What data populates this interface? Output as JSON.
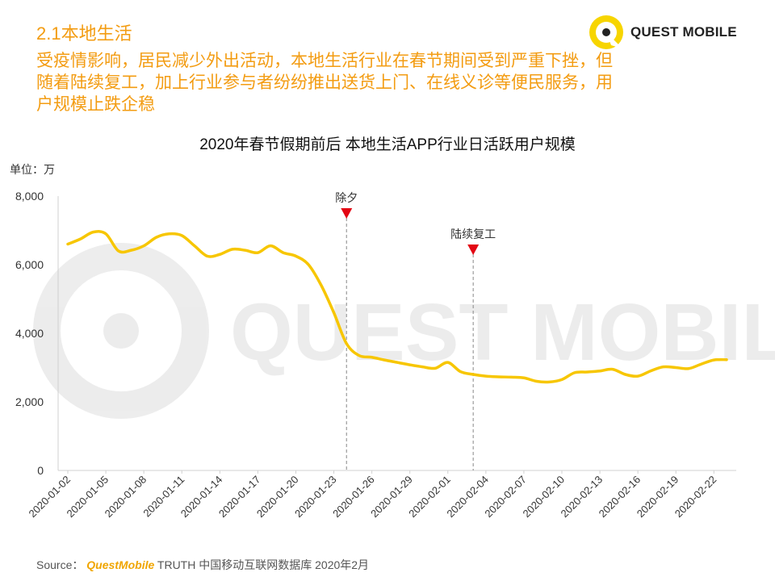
{
  "header": {
    "section_title": "2.1本地生活",
    "headline": "受疫情影响，居民减少外出活动，本地生活行业在春节期间受到严重下挫，但随着陆续复工，加上行业参与者纷纷推出送货上门、在线义诊等便民服务，用户规模止跌企稳",
    "logo_text": "QUEST MOBILE"
  },
  "watermark": "QUEST MOBILE",
  "colors": {
    "accent": "#f39c12",
    "line": "#f7c600",
    "marker": "#e30613",
    "logo_yellow": "#f7d500"
  },
  "chart_data": {
    "type": "line",
    "title": "2020年春节假期前后 本地生活APP行业日活跃用户规模",
    "unit_label": "单位：万",
    "ylim": [
      0,
      8000
    ],
    "y_ticks": [
      0,
      2000,
      4000,
      6000,
      8000
    ],
    "y_tick_labels": [
      "0",
      "2,000",
      "4,000",
      "6,000",
      "8,000"
    ],
    "x_tick_labels": [
      "2020-01-02",
      "2020-01-05",
      "2020-01-08",
      "2020-01-11",
      "2020-01-14",
      "2020-01-17",
      "2020-01-20",
      "2020-01-23",
      "2020-01-26",
      "2020-01-29",
      "2020-02-01",
      "2020-02-04",
      "2020-02-07",
      "2020-02-10",
      "2020-02-13",
      "2020-02-16",
      "2020-02-19",
      "2020-02-22"
    ],
    "x": [
      "2020-01-02",
      "2020-01-03",
      "2020-01-04",
      "2020-01-05",
      "2020-01-06",
      "2020-01-07",
      "2020-01-08",
      "2020-01-09",
      "2020-01-10",
      "2020-01-11",
      "2020-01-12",
      "2020-01-13",
      "2020-01-14",
      "2020-01-15",
      "2020-01-16",
      "2020-01-17",
      "2020-01-18",
      "2020-01-19",
      "2020-01-20",
      "2020-01-21",
      "2020-01-22",
      "2020-01-23",
      "2020-01-24",
      "2020-01-25",
      "2020-01-26",
      "2020-01-27",
      "2020-01-28",
      "2020-01-29",
      "2020-01-30",
      "2020-01-31",
      "2020-02-01",
      "2020-02-02",
      "2020-02-03",
      "2020-02-04",
      "2020-02-05",
      "2020-02-06",
      "2020-02-07",
      "2020-02-08",
      "2020-02-09",
      "2020-02-10",
      "2020-02-11",
      "2020-02-12",
      "2020-02-13",
      "2020-02-14",
      "2020-02-15",
      "2020-02-16",
      "2020-02-17",
      "2020-02-18",
      "2020-02-19",
      "2020-02-20",
      "2020-02-21",
      "2020-02-22",
      "2020-02-23"
    ],
    "series": [
      {
        "values": [
          6600,
          6750,
          6950,
          6900,
          6400,
          6420,
          6550,
          6800,
          6900,
          6850,
          6550,
          6250,
          6300,
          6450,
          6420,
          6350,
          6550,
          6350,
          6250,
          6000,
          5400,
          4600,
          3700,
          3350,
          3300,
          3220,
          3150,
          3080,
          3020,
          2980,
          3150,
          2880,
          2800,
          2750,
          2730,
          2720,
          2700,
          2600,
          2580,
          2650,
          2850,
          2870,
          2900,
          2950,
          2800,
          2750,
          2900,
          3020,
          3000,
          2970,
          3100,
          3220,
          3230
        ]
      }
    ],
    "annotations": [
      {
        "label": "除夕",
        "x": "2020-01-24"
      },
      {
        "label": "陆续复工",
        "x": "2020-02-03"
      }
    ]
  },
  "footer": {
    "source_prefix": "Source：",
    "source_brand": "QuestMobile",
    "source_rest": " TRUTH 中国移动互联网数据库 2020年2月"
  }
}
